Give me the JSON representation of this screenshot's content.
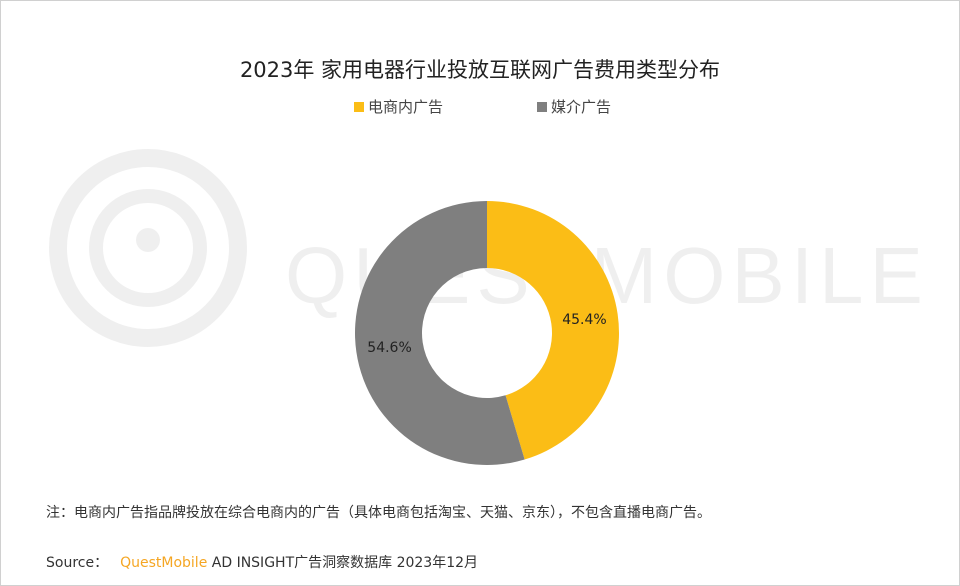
{
  "chart_data": {
    "type": "pie",
    "title": "2023年 家用电器行业投放互联网广告费用类型分布",
    "categories": [
      "电商内广告",
      "媒介广告"
    ],
    "values": [
      45.4,
      54.6
    ],
    "labels": [
      "45.4%",
      "54.6%"
    ],
    "colors": [
      "#fbbd16",
      "#7f7f7f"
    ],
    "legend_position": "top",
    "donut": true
  },
  "note": "注：电商内广告指品牌投放在综合电商内的广告（具体电商包括淘宝、天猫、京东），不包含直播电商广告。",
  "source": {
    "label": "Source：",
    "brand": "QuestMobile",
    "rest": " AD INSIGHT广告洞察数据库 2023年12月"
  },
  "watermark": "QUESTMOBILE"
}
